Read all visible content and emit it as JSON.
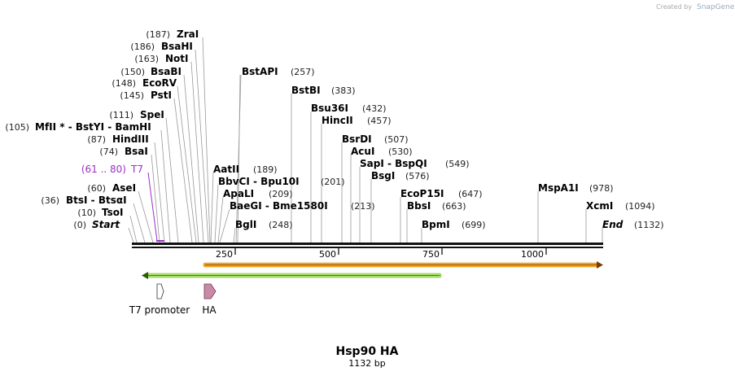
{
  "credit": {
    "prefix": "Created by",
    "brand": "SnapGene"
  },
  "title": "Hsp90 HA",
  "length_label": "1132 bp",
  "scale_ticks": [
    "250",
    "500",
    "750",
    "1000"
  ],
  "sites": [
    {
      "pos": "(187)",
      "name": "ZraI"
    },
    {
      "pos": "(186)",
      "name": "BsaHI"
    },
    {
      "pos": "(163)",
      "name": "NotI"
    },
    {
      "pos": "(150)",
      "name": "BsaBI"
    },
    {
      "pos": "(148)",
      "name": "EcoRV"
    },
    {
      "pos": "(145)",
      "name": "PstI"
    },
    {
      "pos": "(111)",
      "name": "SpeI"
    },
    {
      "pos": "(105)",
      "name": "MfII * - BstYI - BamHI"
    },
    {
      "pos": "(87)",
      "name": "HindIII"
    },
    {
      "pos": "(74)",
      "name": "BsaI"
    },
    {
      "pos": "(60)",
      "name": "AseI"
    },
    {
      "pos": "(36)",
      "name": "BtsI - BtsαI"
    },
    {
      "pos": "(10)",
      "name": "TsoI"
    },
    {
      "pos": "(0)",
      "name": "Start"
    },
    {
      "pos": "(257)",
      "name": "BstAPI"
    },
    {
      "pos": "(383)",
      "name": "BstBI"
    },
    {
      "pos": "(432)",
      "name": "Bsu36I"
    },
    {
      "pos": "(457)",
      "name": "HincII"
    },
    {
      "pos": "(507)",
      "name": "BsrDI"
    },
    {
      "pos": "(530)",
      "name": "AcuI"
    },
    {
      "pos": "(549)",
      "name": "SapI - BspQI"
    },
    {
      "pos": "(576)",
      "name": "BsgI"
    },
    {
      "pos": "(647)",
      "name": "EcoP15I"
    },
    {
      "pos": "(663)",
      "name": "BbsI"
    },
    {
      "pos": "(699)",
      "name": "BpmI"
    },
    {
      "pos": "(189)",
      "name": "AatII"
    },
    {
      "pos": "(201)",
      "name": "BbvCI - Bpu10I"
    },
    {
      "pos": "(209)",
      "name": "ApaLI"
    },
    {
      "pos": "(213)",
      "name": "BaeGI - Bme1580I"
    },
    {
      "pos": "(248)",
      "name": "BglI"
    },
    {
      "pos": "(978)",
      "name": "MspA1I"
    },
    {
      "pos": "(1094)",
      "name": "XcmI"
    },
    {
      "pos": "(1132)",
      "name": "End"
    }
  ],
  "primer_site": {
    "range": "(61 .. 80)",
    "name": "T7"
  },
  "features": [
    {
      "name": "T7 promoter"
    },
    {
      "name": "HA"
    }
  ],
  "colors": {
    "orange_arrow": "#f5a623",
    "green_arrow": "#7ed321",
    "ha_feature": "#c98aa8",
    "primer": "#9b30c8"
  }
}
